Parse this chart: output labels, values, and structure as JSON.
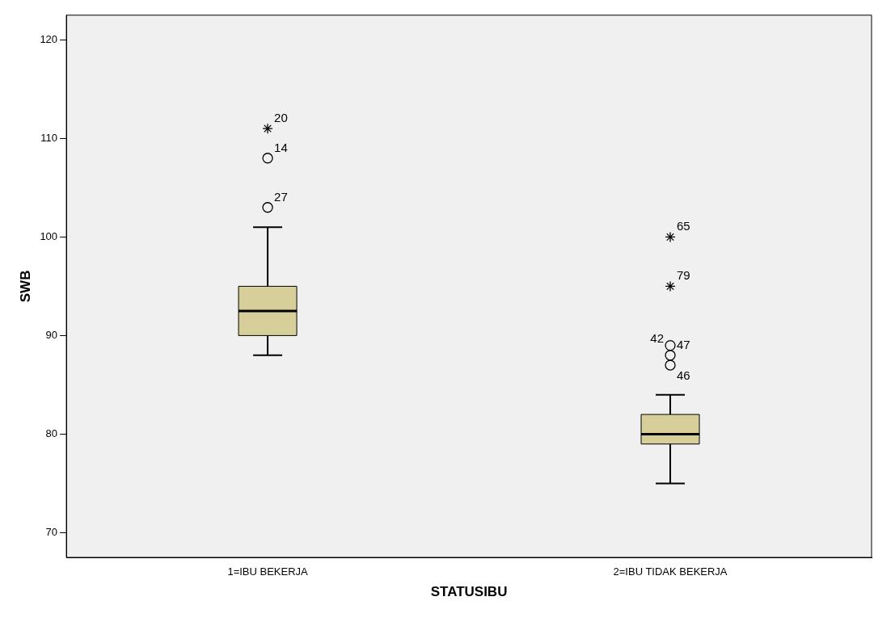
{
  "chart_data": {
    "type": "box",
    "xlabel": "STATUSIBU",
    "ylabel": "SWB",
    "categories": [
      "1=IBU BEKERJA",
      "2=IBU TIDAK BEKERJA"
    ],
    "boxes": [
      {
        "low": 88,
        "q1": 90,
        "median": 92.5,
        "q3": 95,
        "high": 101,
        "outliers": [
          103,
          108,
          111
        ]
      },
      {
        "low": 75,
        "q1": 79,
        "median": 80,
        "q3": 82,
        "high": 84,
        "outliers": [
          87,
          88,
          89,
          95,
          100
        ]
      }
    ],
    "color": "#d6cf9a",
    "ylim": [
      67.5,
      122.5
    ],
    "yticks": [
      70,
      80,
      90,
      100,
      110,
      120
    ],
    "grid": false,
    "legend": false,
    "annotations": [
      "27",
      "14",
      "20",
      "46",
      "47",
      "42",
      "79",
      "65"
    ]
  }
}
